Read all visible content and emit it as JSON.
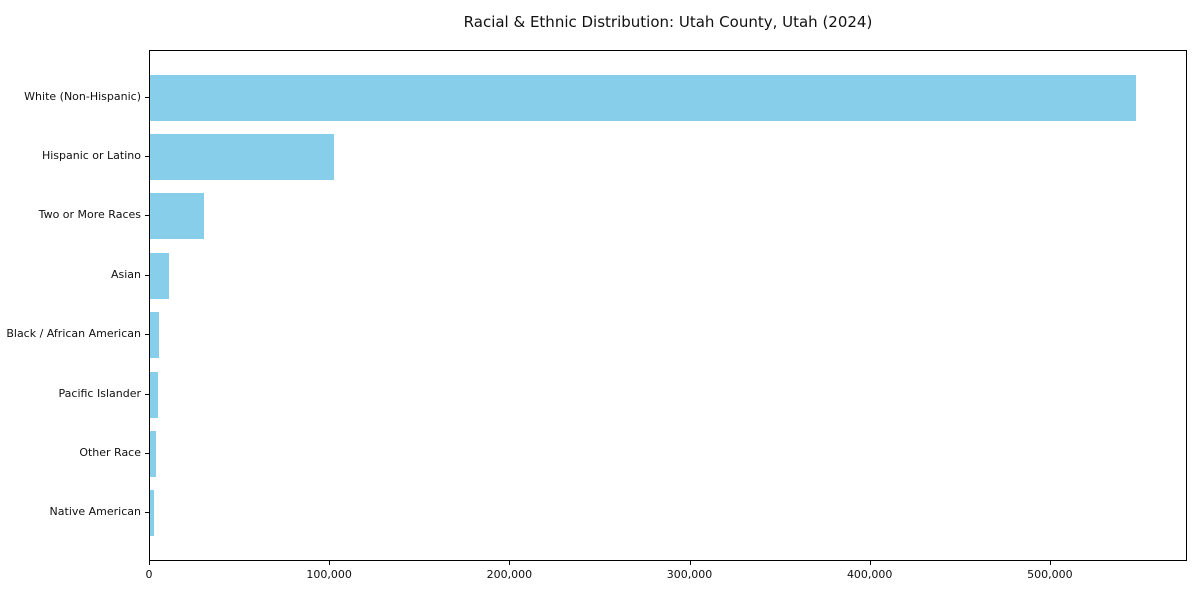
{
  "chart_data": {
    "type": "bar",
    "orientation": "horizontal",
    "title": "Racial & Ethnic Distribution: Utah County, Utah (2024)",
    "xlabel": "",
    "ylabel": "",
    "categories": [
      "White (Non-Hispanic)",
      "Hispanic or Latino",
      "Two or More Races",
      "Asian",
      "Black / African American",
      "Pacific Islander",
      "Other Race",
      "Native American"
    ],
    "values": [
      547000,
      102000,
      30000,
      10500,
      5000,
      4600,
      3300,
      2000
    ],
    "xlim": [
      0,
      575000
    ],
    "xticks": [
      0,
      100000,
      200000,
      300000,
      400000,
      500000
    ],
    "xtick_labels": [
      "0",
      "100,000",
      "200,000",
      "300,000",
      "400,000",
      "500,000"
    ],
    "grid": false,
    "legend": null,
    "bar_color": "#87CEEB",
    "spine_color": "#000000",
    "background_color": "#FFFFFF"
  }
}
